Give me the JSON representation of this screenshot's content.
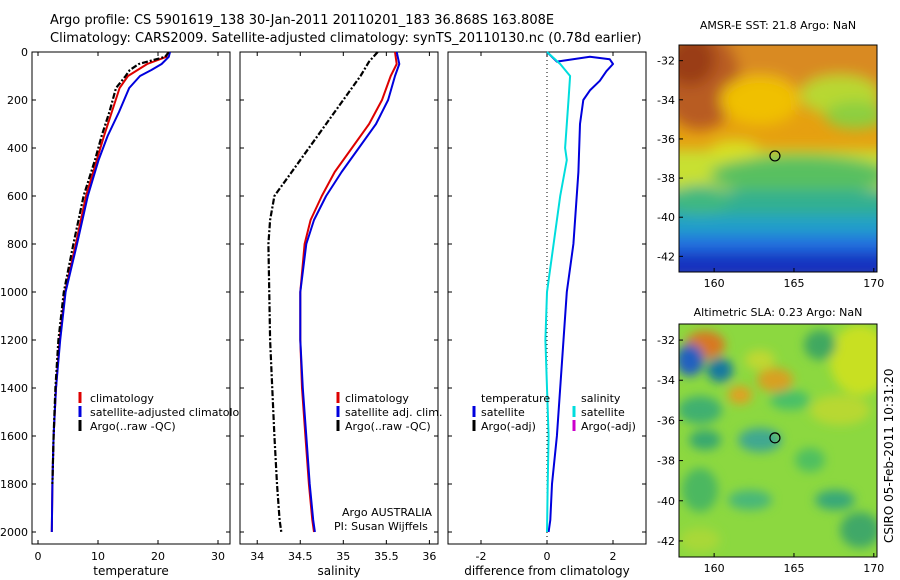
{
  "title_lines": [
    "Argo profile: CS 5901619_138 30-Jan-2011 20110201_183 36.868S 163.808E",
    "Climatology: CARS2009. Satellite-adjusted climatology: synTS_20110130.nc (0.78d earlier)"
  ],
  "colors": {
    "climatology": "#dd0000",
    "satellite": "#0000dd",
    "argo": "#000000",
    "salinity_diff": "#00dddd",
    "argo_adj": "#cc00cc"
  },
  "chart_data": [
    {
      "type": "line",
      "xlabel": "temperature",
      "xlim": [
        -1,
        32
      ],
      "ylim": [
        2050,
        0
      ],
      "xticks": [
        0,
        10,
        20,
        30
      ],
      "yticks": [
        0,
        200,
        400,
        600,
        800,
        1000,
        1200,
        1400,
        1600,
        1800,
        2000
      ],
      "legend": {
        "entries": [
          "climatology",
          "satellite-adjusted climatology",
          "Argo(..raw -QC)"
        ],
        "location": "lower-right"
      },
      "series": [
        {
          "name": "climatology",
          "color": "#dd0000",
          "style": "solid",
          "x": [
            21.7,
            21.4,
            18.2,
            16.6,
            15.0,
            13.6,
            12.3,
            11.0,
            9.8,
            8.0,
            6.3,
            4.5,
            3.6,
            3.0,
            2.6,
            2.4,
            2.3
          ],
          "y": [
            0,
            20,
            50,
            75,
            100,
            150,
            250,
            350,
            450,
            600,
            800,
            1000,
            1200,
            1400,
            1600,
            1800,
            2000
          ]
        },
        {
          "name": "satellite-adjusted climatology",
          "color": "#0000dd",
          "style": "solid",
          "x": [
            22.0,
            21.8,
            20.6,
            18.9,
            17.0,
            15.2,
            13.5,
            11.6,
            10.1,
            8.3,
            6.5,
            4.6,
            3.7,
            3.0,
            2.6,
            2.4,
            2.3
          ],
          "y": [
            0,
            20,
            50,
            75,
            100,
            150,
            250,
            350,
            450,
            600,
            800,
            1000,
            1200,
            1400,
            1600,
            1800,
            2000
          ]
        },
        {
          "name": "Argo(..raw -QC)",
          "color": "#000000",
          "style": "dashdot",
          "x": [
            21.8,
            21.2,
            16.8,
            15.3,
            14.6,
            13.0,
            11.9,
            10.6,
            9.5,
            7.6,
            5.9,
            4.3,
            3.4,
            2.9,
            2.6,
            2.4
          ],
          "y": [
            0,
            20,
            50,
            75,
            100,
            150,
            250,
            350,
            450,
            600,
            800,
            1000,
            1200,
            1400,
            1600,
            1800
          ]
        }
      ]
    },
    {
      "type": "line",
      "xlabel": "salinity",
      "xlim": [
        33.8,
        36.1
      ],
      "ylim": [
        2050,
        0
      ],
      "xticks": [
        34,
        34.5,
        35,
        35.5,
        36
      ],
      "legend": {
        "entries": [
          "climatology",
          "satellite adj. clim.",
          "Argo(..raw -QC)"
        ],
        "location": "lower-right"
      },
      "annotations": [
        "Argo AUSTRALIA",
        "PI: Susan Wijffels"
      ],
      "series": [
        {
          "name": "climatology",
          "color": "#dd0000",
          "style": "solid",
          "x": [
            35.6,
            35.62,
            35.55,
            35.45,
            35.3,
            35.1,
            34.9,
            34.75,
            34.62,
            34.55,
            34.5,
            34.5,
            34.52,
            34.56,
            34.6,
            34.64,
            34.66
          ],
          "y": [
            0,
            50,
            100,
            200,
            300,
            400,
            500,
            600,
            700,
            800,
            1000,
            1200,
            1400,
            1600,
            1800,
            1950,
            2000
          ]
        },
        {
          "name": "satellite adj. clim.",
          "color": "#0000dd",
          "style": "solid",
          "x": [
            35.62,
            35.65,
            35.6,
            35.52,
            35.38,
            35.18,
            34.98,
            34.8,
            34.66,
            34.57,
            34.5,
            34.5,
            34.53,
            34.57,
            34.61,
            34.65,
            34.67
          ],
          "y": [
            0,
            50,
            100,
            200,
            300,
            400,
            500,
            600,
            700,
            800,
            1000,
            1200,
            1400,
            1600,
            1800,
            1950,
            2000
          ]
        },
        {
          "name": "Argo(..raw -QC)",
          "color": "#000000",
          "style": "dashdot",
          "x": [
            35.4,
            35.3,
            35.2,
            35.0,
            34.8,
            34.6,
            34.4,
            34.2,
            34.15,
            34.13,
            34.15,
            34.2,
            34.23,
            34.26,
            34.28
          ],
          "y": [
            0,
            40,
            100,
            200,
            300,
            400,
            500,
            600,
            700,
            800,
            1200,
            1600,
            1800,
            1950,
            2000
          ]
        }
      ]
    },
    {
      "type": "line",
      "xlabel": "difference from climatology",
      "xlim": [
        -3,
        3
      ],
      "ylim": [
        2050,
        0
      ],
      "xticks": [
        -2,
        0,
        2
      ],
      "legend": {
        "columns": [
          {
            "header": "temperature",
            "entries": [
              "satellite",
              "Argo(-adj)"
            ]
          },
          {
            "header": "salinity",
            "entries": [
              "satellite",
              "Argo(-adj)"
            ]
          }
        ],
        "location": "lower"
      },
      "series": [
        {
          "name": "temperature satellite",
          "color": "#0000dd",
          "style": "solid",
          "x": [
            0.0,
            0.3,
            1.3,
            1.9,
            2.0,
            1.8,
            1.6,
            1.3,
            1.1,
            1.0,
            0.95,
            0.8,
            0.6,
            0.5,
            0.4,
            0.3,
            0.15,
            0.1,
            0.05
          ],
          "y": [
            0,
            40,
            20,
            30,
            50,
            80,
            120,
            160,
            200,
            300,
            500,
            800,
            1000,
            1200,
            1400,
            1600,
            1800,
            1950,
            2000
          ]
        },
        {
          "name": "salinity satellite",
          "color": "#00dddd",
          "style": "solid",
          "x": [
            0.0,
            0.4,
            0.7,
            0.65,
            0.6,
            0.55,
            0.6,
            0.4,
            0.2,
            0.0,
            -0.05,
            0.0,
            0.05,
            0.02,
            0.0
          ],
          "y": [
            0,
            50,
            100,
            200,
            300,
            400,
            450,
            600,
            800,
            1000,
            1200,
            1400,
            1600,
            1800,
            2000
          ]
        }
      ]
    },
    {
      "type": "heatmap",
      "title": "AMSR-E SST: 21.8 Argo: NaN",
      "xlim": [
        157.8,
        170.2
      ],
      "ylim": [
        -42.8,
        -31.2
      ],
      "xticks": [
        160,
        165,
        170
      ],
      "yticks": [
        -32,
        -34,
        -36,
        -38,
        -40,
        -42
      ],
      "marker": {
        "x": 163.808,
        "y": -36.868
      }
    },
    {
      "type": "heatmap",
      "title": "Altimetric SLA: 0.23 Argo: NaN",
      "xlim": [
        157.8,
        170.2
      ],
      "ylim": [
        -42.8,
        -31.2
      ],
      "xticks": [
        160,
        165,
        170
      ],
      "yticks": [
        -32,
        -34,
        -36,
        -38,
        -40,
        -42
      ],
      "marker": {
        "x": 163.808,
        "y": -36.868
      }
    }
  ],
  "side_label": "CSIRO 05-Feb-2011 10:31:20"
}
